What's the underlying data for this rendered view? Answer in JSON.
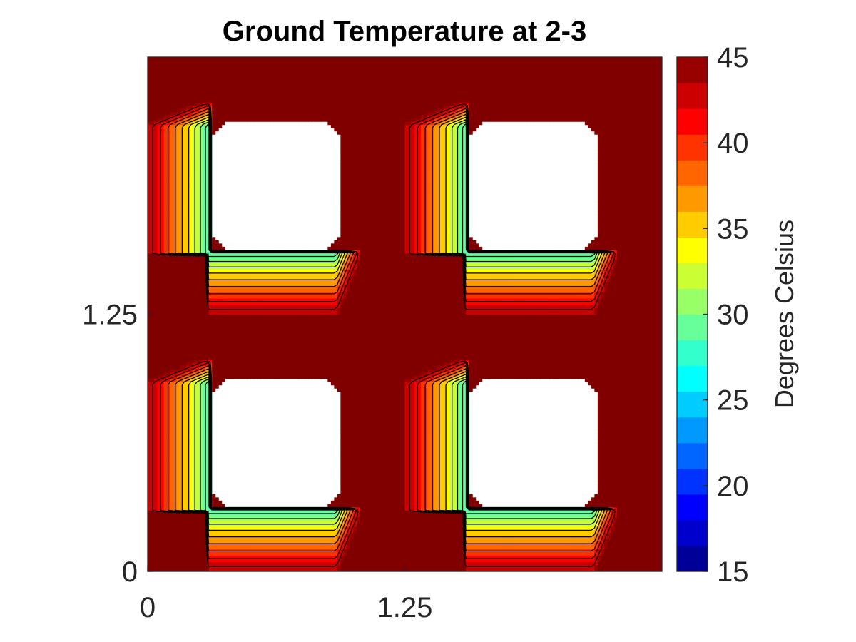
{
  "chart_data": {
    "type": "heatmap",
    "title": "Ground Temperature at 2-3",
    "xlabel": "",
    "ylabel": "",
    "xlim": [
      0,
      2.5
    ],
    "ylim": [
      0,
      2.5
    ],
    "x_ticks": [
      {
        "value": 0,
        "label": "0"
      },
      {
        "value": 1.25,
        "label": "1.25"
      }
    ],
    "y_ticks": [
      {
        "value": 0,
        "label": "0"
      },
      {
        "value": 1.25,
        "label": "1.25"
      }
    ],
    "colormap": "jet",
    "colorbar": {
      "label": "Degrees Celsius",
      "range": [
        15,
        45
      ],
      "ticks": [
        {
          "value": 15,
          "label": "15"
        },
        {
          "value": 20,
          "label": "20"
        },
        {
          "value": 25,
          "label": "25"
        },
        {
          "value": 30,
          "label": "30"
        },
        {
          "value": 35,
          "label": "35"
        },
        {
          "value": 40,
          "label": "40"
        },
        {
          "value": 45,
          "label": "45"
        }
      ]
    },
    "pattern": {
      "period": 1.25,
      "hole_x": [
        0.3125,
        0.9375
      ],
      "hole_y": [
        0.3125,
        0.9375
      ],
      "hole_chamfer": 0.07,
      "hot_temp": 45,
      "cold_edge_temp": 26
    },
    "grid": false
  }
}
